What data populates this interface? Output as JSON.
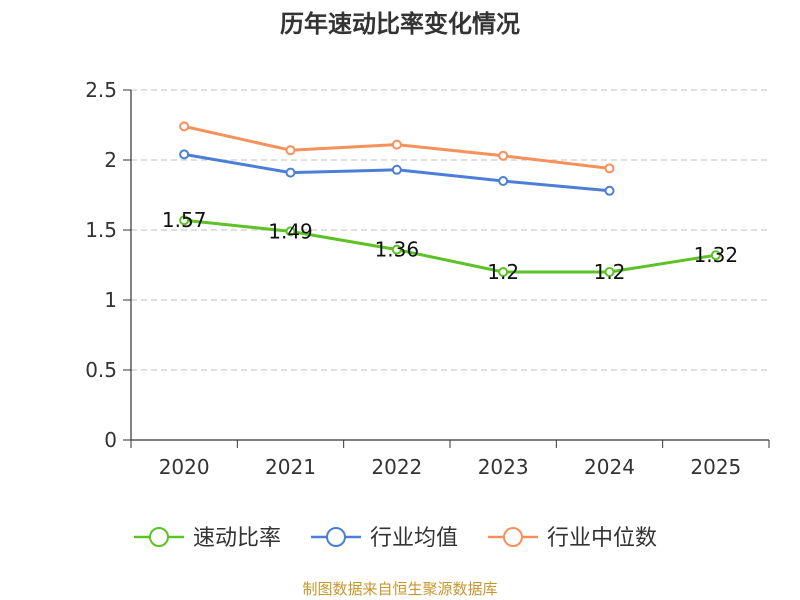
{
  "chart_data": {
    "type": "line",
    "title": "历年速动比率变化情况",
    "categories": [
      "2020",
      "2021",
      "2022",
      "2023",
      "2024",
      "2025"
    ],
    "ylim": [
      0,
      2.5
    ],
    "yticks": [
      0,
      0.5,
      1,
      1.5,
      2,
      2.5
    ],
    "ytick_labels": [
      "0",
      "0.5",
      "1",
      "1.5",
      "2",
      "2.5"
    ],
    "grid": true,
    "legend_position": "bottom",
    "series": [
      {
        "name": "速动比率",
        "color": "#5cc226",
        "values": [
          1.57,
          1.49,
          1.36,
          1.2,
          1.2,
          1.32
        ],
        "labels": [
          "1.57",
          "1.49",
          "1.36",
          "1.2",
          "1.2",
          "1.32"
        ]
      },
      {
        "name": "行业均值",
        "color": "#4b7fd6",
        "values": [
          2.04,
          1.91,
          1.93,
          1.85,
          1.78,
          null
        ]
      },
      {
        "name": "行业中位数",
        "color": "#f7905a",
        "values": [
          2.24,
          2.07,
          2.11,
          2.03,
          1.94,
          null
        ]
      }
    ],
    "source": "制图数据来自恒生聚源数据库"
  }
}
